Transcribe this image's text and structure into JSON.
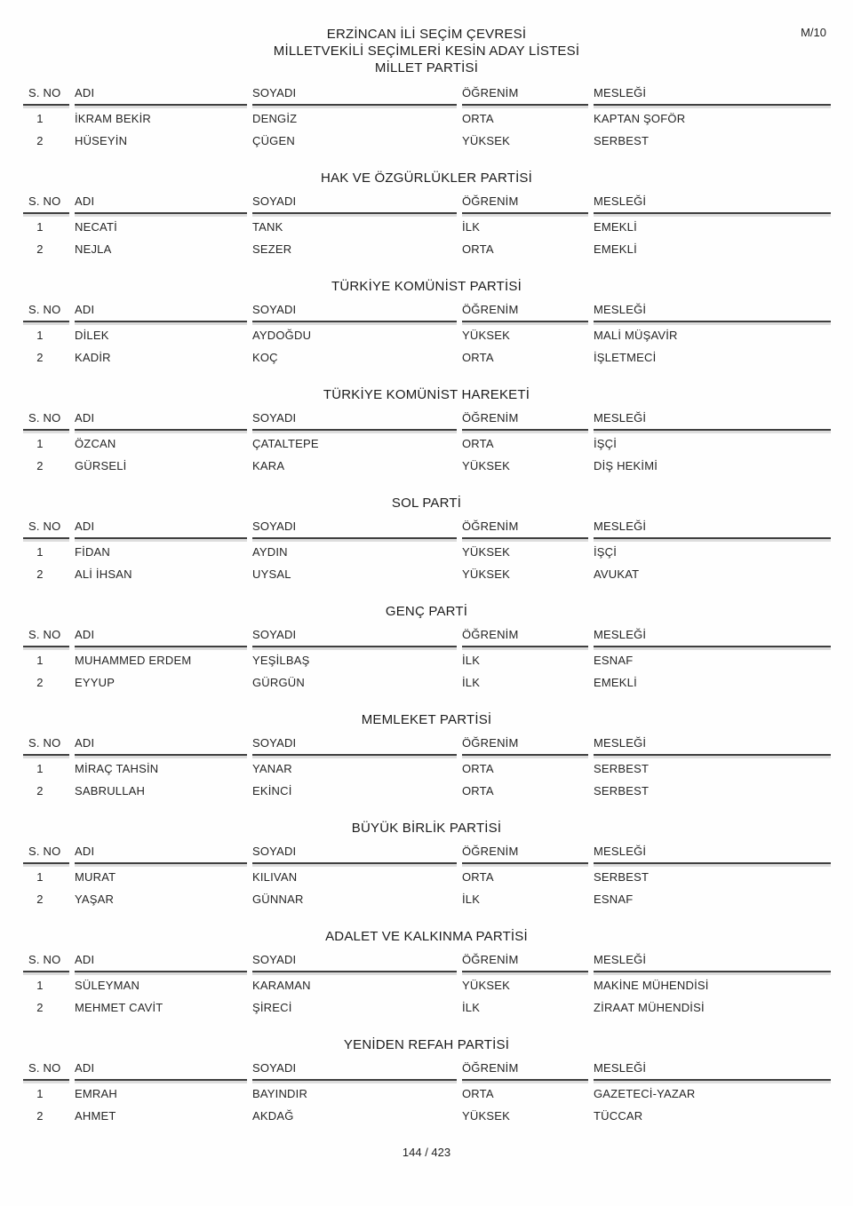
{
  "page": {
    "doc_code": "M/10",
    "title_line1": "ERZİNCAN İLİ SEÇİM ÇEVRESİ",
    "title_line2": "MİLLETVEKİLİ SEÇİMLERİ KESİN ADAY LİSTESİ",
    "title_line3": "MİLLET PARTİSİ",
    "footer": "144 / 423"
  },
  "table_headers": [
    "S. NO",
    "ADI",
    "SOYADI",
    "ÖĞRENİM",
    "MESLEĞİ"
  ],
  "sections": [
    {
      "party": "",
      "rows": [
        {
          "no": "1",
          "adi": "İKRAM BEKİR",
          "soyadi": "DENGİZ",
          "ogrenim": "ORTA",
          "meslegi": "KAPTAN ŞOFÖR"
        },
        {
          "no": "2",
          "adi": "HÜSEYİN",
          "soyadi": "ÇÜGEN",
          "ogrenim": "YÜKSEK",
          "meslegi": "SERBEST"
        }
      ]
    },
    {
      "party": "HAK VE ÖZGÜRLÜKLER PARTİSİ",
      "rows": [
        {
          "no": "1",
          "adi": "NECATİ",
          "soyadi": "TANK",
          "ogrenim": "İLK",
          "meslegi": "EMEKLİ"
        },
        {
          "no": "2",
          "adi": "NEJLA",
          "soyadi": "SEZER",
          "ogrenim": "ORTA",
          "meslegi": "EMEKLİ"
        }
      ]
    },
    {
      "party": "TÜRKİYE KOMÜNİST PARTİSİ",
      "rows": [
        {
          "no": "1",
          "adi": "DİLEK",
          "soyadi": "AYDOĞDU",
          "ogrenim": "YÜKSEK",
          "meslegi": "MALİ MÜŞAVİR"
        },
        {
          "no": "2",
          "adi": "KADİR",
          "soyadi": "KOÇ",
          "ogrenim": "ORTA",
          "meslegi": "İŞLETMECİ"
        }
      ]
    },
    {
      "party": "TÜRKİYE KOMÜNİST HAREKETİ",
      "rows": [
        {
          "no": "1",
          "adi": "ÖZCAN",
          "soyadi": "ÇATALTEPE",
          "ogrenim": "ORTA",
          "meslegi": "İŞÇİ"
        },
        {
          "no": "2",
          "adi": "GÜRSELİ",
          "soyadi": "KARA",
          "ogrenim": "YÜKSEK",
          "meslegi": "DİŞ HEKİMİ"
        }
      ]
    },
    {
      "party": "SOL PARTİ",
      "rows": [
        {
          "no": "1",
          "adi": "FİDAN",
          "soyadi": "AYDIN",
          "ogrenim": "YÜKSEK",
          "meslegi": "İŞÇİ"
        },
        {
          "no": "2",
          "adi": "ALİ İHSAN",
          "soyadi": "UYSAL",
          "ogrenim": "YÜKSEK",
          "meslegi": "AVUKAT"
        }
      ]
    },
    {
      "party": "GENÇ PARTİ",
      "rows": [
        {
          "no": "1",
          "adi": "MUHAMMED ERDEM",
          "soyadi": "YEŞİLBAŞ",
          "ogrenim": "İLK",
          "meslegi": "ESNAF"
        },
        {
          "no": "2",
          "adi": "EYYUP",
          "soyadi": "GÜRGÜN",
          "ogrenim": "İLK",
          "meslegi": "EMEKLİ"
        }
      ]
    },
    {
      "party": "MEMLEKET PARTİSİ",
      "rows": [
        {
          "no": "1",
          "adi": "MİRAÇ TAHSİN",
          "soyadi": "YANAR",
          "ogrenim": "ORTA",
          "meslegi": "SERBEST"
        },
        {
          "no": "2",
          "adi": "SABRULLAH",
          "soyadi": "EKİNCİ",
          "ogrenim": "ORTA",
          "meslegi": "SERBEST"
        }
      ]
    },
    {
      "party": "BÜYÜK BİRLİK PARTİSİ",
      "rows": [
        {
          "no": "1",
          "adi": "MURAT",
          "soyadi": "KILIVAN",
          "ogrenim": "ORTA",
          "meslegi": "SERBEST"
        },
        {
          "no": "2",
          "adi": "YAŞAR",
          "soyadi": "GÜNNAR",
          "ogrenim": "İLK",
          "meslegi": "ESNAF"
        }
      ]
    },
    {
      "party": "ADALET VE KALKINMA PARTİSİ",
      "rows": [
        {
          "no": "1",
          "adi": "SÜLEYMAN",
          "soyadi": "KARAMAN",
          "ogrenim": "YÜKSEK",
          "meslegi": "MAKİNE MÜHENDİSİ"
        },
        {
          "no": "2",
          "adi": "MEHMET CAVİT",
          "soyadi": "ŞİRECİ",
          "ogrenim": "İLK",
          "meslegi": "ZİRAAT MÜHENDİSİ"
        }
      ]
    },
    {
      "party": "YENİDEN REFAH PARTİSİ",
      "rows": [
        {
          "no": "1",
          "adi": "EMRAH",
          "soyadi": "BAYINDIR",
          "ogrenim": "ORTA",
          "meslegi": "GAZETECİ-YAZAR"
        },
        {
          "no": "2",
          "adi": "AHMET",
          "soyadi": "AKDAĞ",
          "ogrenim": "YÜKSEK",
          "meslegi": "TÜCCAR"
        }
      ]
    }
  ]
}
